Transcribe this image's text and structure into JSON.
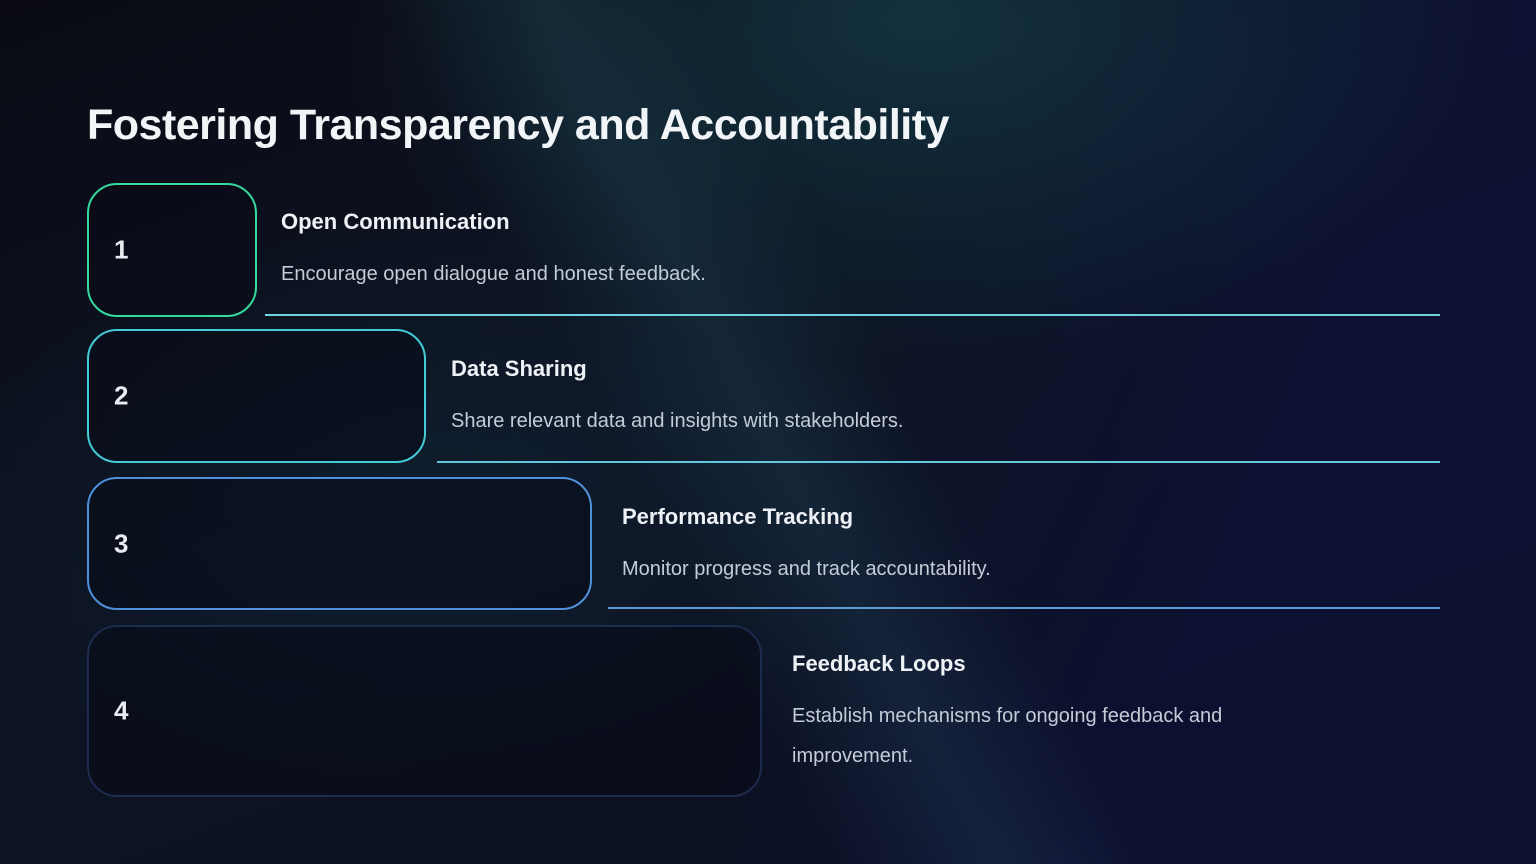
{
  "slide": {
    "title": "Fostering Transparency and Accountability",
    "items": [
      {
        "number": "1",
        "title": "Open Communication",
        "description": "Encourage open dialogue and honest feedback.",
        "accent": "#36d99e",
        "divider_color": "#6fd2dd"
      },
      {
        "number": "2",
        "title": "Data Sharing",
        "description": "Share relevant data and insights with stakeholders.",
        "accent": "#41ccd8",
        "divider_color": "#63c8da"
      },
      {
        "number": "3",
        "title": "Performance Tracking",
        "description": "Monitor progress and track accountability.",
        "accent": "#4e90da",
        "divider_color": "#5b9bd5"
      },
      {
        "number": "4",
        "title": "Feedback Loops",
        "description": "Establish mechanisms for ongoing feedback and improvement.",
        "accent": "#1c2b4e",
        "divider_color": null
      }
    ]
  }
}
